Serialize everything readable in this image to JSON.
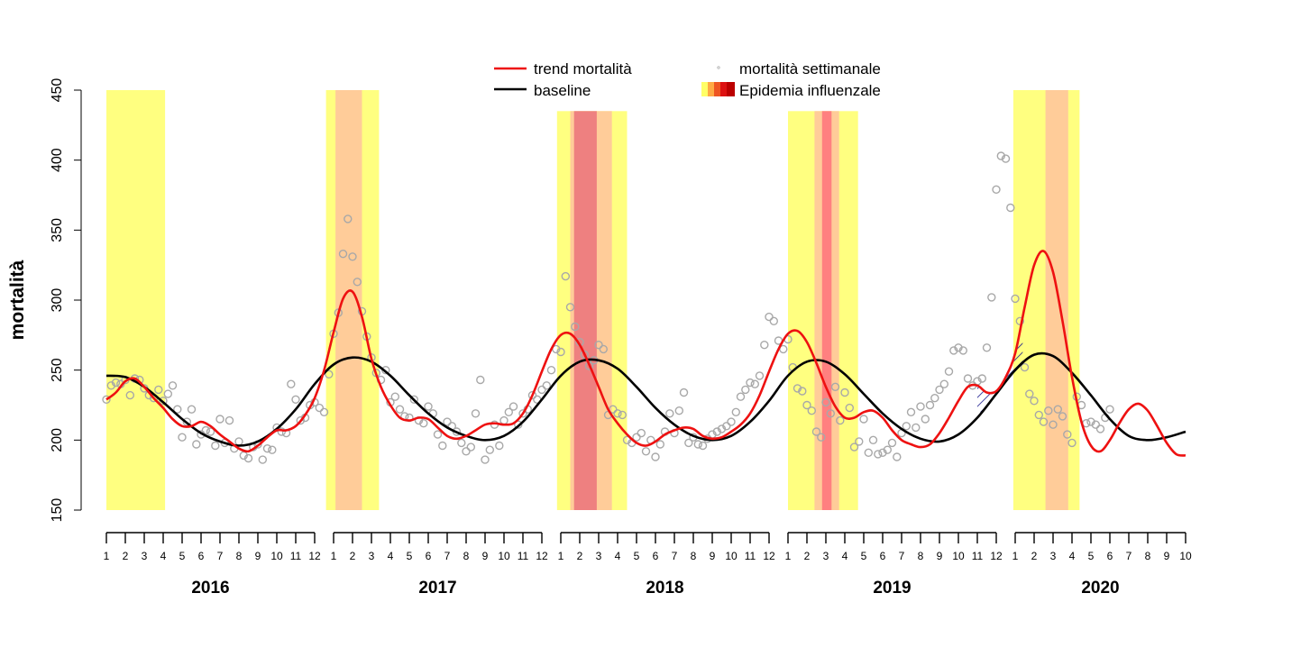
{
  "chart_data": {
    "type": "line",
    "ylabel": "mortalità",
    "ylim": [
      150,
      450
    ],
    "yticks": [
      "150",
      "200",
      "250",
      "300",
      "350",
      "400",
      "450"
    ],
    "month_tick_labels": [
      "1",
      "2",
      "3",
      "4",
      "5",
      "6",
      "7",
      "8",
      "9",
      "10",
      "11",
      "12"
    ],
    "years": [
      {
        "label": "2016",
        "months": 12
      },
      {
        "label": "2017",
        "months": 12
      },
      {
        "label": "2018",
        "months": 12
      },
      {
        "label": "2019",
        "months": 12
      },
      {
        "label": "2020",
        "months": 10
      }
    ],
    "legend": {
      "trend": "trend mortalità",
      "baseline": "baseline",
      "weekly": "mortalità settimanale",
      "epidemic": "Epidemia influenzale"
    },
    "colors": {
      "trend": "#ee1111",
      "baseline": "#000000",
      "points": "#a8a8a8",
      "epi_level1": "#ffff80",
      "epi_level2": "#ffcc99",
      "epi_level3": "#ee8080",
      "epi_level4": "#ff8080",
      "epi_level5": "#cc0000",
      "hatch": "#1a1a8c"
    },
    "epidemic_bands": [
      {
        "start": 0.0,
        "end": 3.1,
        "level": 1,
        "top": 450
      },
      {
        "start": 11.6,
        "end": 14.4,
        "level": 1,
        "top": 450
      },
      {
        "start": 12.1,
        "end": 13.5,
        "level": 2,
        "top": 450
      },
      {
        "start": 23.8,
        "end": 27.5,
        "level": 1,
        "top": 435
      },
      {
        "start": 24.5,
        "end": 26.7,
        "level": 2,
        "top": 435
      },
      {
        "start": 24.7,
        "end": 25.9,
        "level": 3,
        "top": 435
      },
      {
        "start": 36.0,
        "end": 39.7,
        "level": 1,
        "top": 435
      },
      {
        "start": 37.4,
        "end": 38.7,
        "level": 2,
        "top": 435
      },
      {
        "start": 37.8,
        "end": 38.3,
        "level": 4,
        "top": 435
      },
      {
        "start": 47.9,
        "end": 51.4,
        "level": 1,
        "top": 450
      },
      {
        "start": 49.6,
        "end": 50.8,
        "level": 2,
        "top": 450
      }
    ],
    "baseline_points": [
      [
        0,
        246
      ],
      [
        1,
        245
      ],
      [
        2,
        238
      ],
      [
        3,
        227
      ],
      [
        4,
        215
      ],
      [
        5,
        205
      ],
      [
        6,
        199
      ],
      [
        7,
        196
      ],
      [
        8,
        199
      ],
      [
        9,
        208
      ],
      [
        10,
        222
      ],
      [
        11,
        240
      ],
      [
        12,
        254
      ],
      [
        13,
        259
      ],
      [
        14,
        256
      ],
      [
        15,
        246
      ],
      [
        16,
        232
      ],
      [
        17,
        219
      ],
      [
        18,
        209
      ],
      [
        19,
        203
      ],
      [
        20,
        200
      ],
      [
        21,
        203
      ],
      [
        22,
        213
      ],
      [
        23,
        229
      ],
      [
        24,
        246
      ],
      [
        25,
        256
      ],
      [
        26,
        257
      ],
      [
        27,
        251
      ],
      [
        28,
        238
      ],
      [
        29,
        223
      ],
      [
        30,
        211
      ],
      [
        31,
        203
      ],
      [
        32,
        200
      ],
      [
        33,
        203
      ],
      [
        34,
        213
      ],
      [
        35,
        228
      ],
      [
        36,
        246
      ],
      [
        37,
        256
      ],
      [
        38,
        256
      ],
      [
        39,
        247
      ],
      [
        40,
        233
      ],
      [
        41,
        219
      ],
      [
        42,
        208
      ],
      [
        43,
        201
      ],
      [
        44,
        199
      ],
      [
        45,
        204
      ],
      [
        46,
        216
      ],
      [
        47,
        233
      ],
      [
        48,
        250
      ],
      [
        49,
        261
      ],
      [
        50,
        260
      ],
      [
        51,
        248
      ],
      [
        52,
        232
      ],
      [
        53,
        215
      ],
      [
        54,
        203
      ],
      [
        55,
        200
      ],
      [
        56,
        202
      ],
      [
        57,
        206
      ]
    ],
    "trend_points": [
      [
        0,
        229
      ],
      [
        0.5,
        234
      ],
      [
        1,
        242
      ],
      [
        1.5,
        244
      ],
      [
        2,
        238
      ],
      [
        2.5,
        230
      ],
      [
        3,
        223
      ],
      [
        3.5,
        215
      ],
      [
        4,
        210
      ],
      [
        4.5,
        210
      ],
      [
        5,
        213
      ],
      [
        5.5,
        210
      ],
      [
        6,
        204
      ],
      [
        6.5,
        199
      ],
      [
        7,
        194
      ],
      [
        7.5,
        192
      ],
      [
        8,
        196
      ],
      [
        8.5,
        202
      ],
      [
        9,
        207
      ],
      [
        9.5,
        207
      ],
      [
        10,
        210
      ],
      [
        10.5,
        218
      ],
      [
        11,
        230
      ],
      [
        11.5,
        250
      ],
      [
        12,
        277
      ],
      [
        12.5,
        301
      ],
      [
        13,
        306
      ],
      [
        13.5,
        288
      ],
      [
        14,
        258
      ],
      [
        14.5,
        238
      ],
      [
        15,
        225
      ],
      [
        15.5,
        216
      ],
      [
        16,
        214
      ],
      [
        16.5,
        216
      ],
      [
        17,
        215
      ],
      [
        17.5,
        209
      ],
      [
        18,
        203
      ],
      [
        18.5,
        201
      ],
      [
        19,
        203
      ],
      [
        19.5,
        207
      ],
      [
        20,
        211
      ],
      [
        20.5,
        212
      ],
      [
        21,
        211
      ],
      [
        21.5,
        212
      ],
      [
        22,
        219
      ],
      [
        22.5,
        232
      ],
      [
        23,
        249
      ],
      [
        23.5,
        265
      ],
      [
        24,
        275
      ],
      [
        24.5,
        276
      ],
      [
        25,
        268
      ],
      [
        25.5,
        254
      ],
      [
        26,
        238
      ],
      [
        26.5,
        222
      ],
      [
        27,
        212
      ],
      [
        27.5,
        204
      ],
      [
        28,
        198
      ],
      [
        28.5,
        196
      ],
      [
        29,
        199
      ],
      [
        29.5,
        204
      ],
      [
        30,
        207
      ],
      [
        30.5,
        209
      ],
      [
        31,
        208
      ],
      [
        31.5,
        203
      ],
      [
        32,
        201
      ],
      [
        32.5,
        202
      ],
      [
        33,
        206
      ],
      [
        33.5,
        211
      ],
      [
        34,
        219
      ],
      [
        34.5,
        232
      ],
      [
        35,
        249
      ],
      [
        35.5,
        265
      ],
      [
        36,
        276
      ],
      [
        36.5,
        278
      ],
      [
        37,
        270
      ],
      [
        37.5,
        255
      ],
      [
        38,
        238
      ],
      [
        38.5,
        224
      ],
      [
        39,
        216
      ],
      [
        39.5,
        216
      ],
      [
        40,
        220
      ],
      [
        40.5,
        221
      ],
      [
        41,
        216
      ],
      [
        41.5,
        207
      ],
      [
        42,
        200
      ],
      [
        42.5,
        197
      ],
      [
        43,
        195
      ],
      [
        43.5,
        197
      ],
      [
        44,
        205
      ],
      [
        44.5,
        216
      ],
      [
        45,
        228
      ],
      [
        45.5,
        238
      ],
      [
        46,
        239
      ],
      [
        46.5,
        234
      ],
      [
        47,
        235
      ],
      [
        47.5,
        245
      ],
      [
        48,
        262
      ],
      [
        48.5,
        295
      ],
      [
        49,
        325
      ],
      [
        49.5,
        335
      ],
      [
        50,
        320
      ],
      [
        50.5,
        285
      ],
      [
        51,
        245
      ],
      [
        51.5,
        213
      ],
      [
        52,
        196
      ],
      [
        52.5,
        192
      ],
      [
        53,
        200
      ],
      [
        53.5,
        212
      ],
      [
        54,
        222
      ],
      [
        54.5,
        226
      ],
      [
        55,
        221
      ],
      [
        55.5,
        210
      ],
      [
        56,
        198
      ],
      [
        56.5,
        190
      ],
      [
        57,
        189
      ]
    ],
    "weekly_points": [
      [
        0.0,
        229
      ],
      [
        0.25,
        239
      ],
      [
        0.5,
        241
      ],
      [
        0.75,
        240
      ],
      [
        1.0,
        243
      ],
      [
        1.25,
        232
      ],
      [
        1.5,
        244
      ],
      [
        1.75,
        243
      ],
      [
        2.0,
        237
      ],
      [
        2.25,
        232
      ],
      [
        2.5,
        230
      ],
      [
        2.75,
        236
      ],
      [
        3.0,
        228
      ],
      [
        3.25,
        233
      ],
      [
        3.5,
        239
      ],
      [
        3.75,
        222
      ],
      [
        4.0,
        202
      ],
      [
        4.25,
        213
      ],
      [
        4.5,
        222
      ],
      [
        4.75,
        197
      ],
      [
        5.0,
        204
      ],
      [
        5.25,
        207
      ],
      [
        5.5,
        206
      ],
      [
        5.75,
        196
      ],
      [
        6.0,
        215
      ],
      [
        6.25,
        198
      ],
      [
        6.5,
        214
      ],
      [
        6.75,
        194
      ],
      [
        7.0,
        199
      ],
      [
        7.25,
        189
      ],
      [
        7.5,
        187
      ],
      [
        7.75,
        195
      ],
      [
        8.0,
        197
      ],
      [
        8.25,
        186
      ],
      [
        8.5,
        194
      ],
      [
        8.75,
        193
      ],
      [
        9.0,
        209
      ],
      [
        9.25,
        206
      ],
      [
        9.5,
        205
      ],
      [
        9.75,
        240
      ],
      [
        10.0,
        229
      ],
      [
        10.25,
        214
      ],
      [
        10.5,
        216
      ],
      [
        10.75,
        225
      ],
      [
        11.0,
        227
      ],
      [
        11.25,
        223
      ],
      [
        11.5,
        220
      ],
      [
        11.75,
        247
      ],
      [
        12.0,
        276
      ],
      [
        12.25,
        291
      ],
      [
        12.5,
        333
      ],
      [
        12.75,
        358
      ],
      [
        13.0,
        331
      ],
      [
        13.25,
        313
      ],
      [
        13.5,
        292
      ],
      [
        13.75,
        274
      ],
      [
        14.0,
        259
      ],
      [
        14.25,
        248
      ],
      [
        14.5,
        243
      ],
      [
        14.75,
        250
      ],
      [
        15.0,
        227
      ],
      [
        15.25,
        231
      ],
      [
        15.5,
        222
      ],
      [
        15.75,
        217
      ],
      [
        16.0,
        216
      ],
      [
        16.25,
        229
      ],
      [
        16.5,
        214
      ],
      [
        16.75,
        212
      ],
      [
        17.0,
        224
      ],
      [
        17.25,
        219
      ],
      [
        17.5,
        204
      ],
      [
        17.75,
        196
      ],
      [
        18.0,
        213
      ],
      [
        18.25,
        210
      ],
      [
        18.5,
        206
      ],
      [
        18.75,
        198
      ],
      [
        19.0,
        192
      ],
      [
        19.25,
        195
      ],
      [
        19.5,
        219
      ],
      [
        19.75,
        243
      ],
      [
        20.0,
        186
      ],
      [
        20.25,
        193
      ],
      [
        20.5,
        211
      ],
      [
        20.75,
        196
      ],
      [
        21.0,
        214
      ],
      [
        21.25,
        220
      ],
      [
        21.5,
        224
      ],
      [
        21.75,
        211
      ],
      [
        22.0,
        219
      ],
      [
        22.25,
        222
      ],
      [
        22.5,
        232
      ],
      [
        22.75,
        229
      ],
      [
        23.0,
        236
      ],
      [
        23.25,
        239
      ],
      [
        23.5,
        250
      ],
      [
        23.75,
        265
      ],
      [
        24.0,
        263
      ],
      [
        24.25,
        317
      ],
      [
        24.5,
        295
      ],
      [
        24.75,
        281
      ],
      [
        25.0,
        270
      ],
      [
        25.25,
        261
      ],
      [
        25.5,
        253
      ],
      [
        25.75,
        257
      ],
      [
        26.0,
        268
      ],
      [
        26.25,
        265
      ],
      [
        26.5,
        218
      ],
      [
        26.75,
        222
      ],
      [
        27.0,
        219
      ],
      [
        27.25,
        218
      ],
      [
        27.5,
        200
      ],
      [
        27.75,
        198
      ],
      [
        28.0,
        202
      ],
      [
        28.25,
        205
      ],
      [
        28.5,
        192
      ],
      [
        28.75,
        200
      ],
      [
        29.0,
        188
      ],
      [
        29.25,
        197
      ],
      [
        29.5,
        206
      ],
      [
        29.75,
        219
      ],
      [
        30.0,
        205
      ],
      [
        30.25,
        221
      ],
      [
        30.5,
        234
      ],
      [
        30.75,
        198
      ],
      [
        31.0,
        202
      ],
      [
        31.25,
        197
      ],
      [
        31.5,
        196
      ],
      [
        31.75,
        201
      ],
      [
        32.0,
        204
      ],
      [
        32.25,
        206
      ],
      [
        32.5,
        208
      ],
      [
        32.75,
        210
      ],
      [
        33.0,
        213
      ],
      [
        33.25,
        220
      ],
      [
        33.5,
        231
      ],
      [
        33.75,
        236
      ],
      [
        34.0,
        241
      ],
      [
        34.25,
        240
      ],
      [
        34.5,
        246
      ],
      [
        34.75,
        268
      ],
      [
        35.0,
        288
      ],
      [
        35.25,
        285
      ],
      [
        35.5,
        271
      ],
      [
        35.75,
        265
      ],
      [
        36.0,
        272
      ],
      [
        36.25,
        252
      ],
      [
        36.5,
        237
      ],
      [
        36.75,
        235
      ],
      [
        37.0,
        225
      ],
      [
        37.25,
        221
      ],
      [
        37.5,
        206
      ],
      [
        37.75,
        202
      ],
      [
        38.0,
        227
      ],
      [
        38.25,
        219
      ],
      [
        38.5,
        238
      ],
      [
        38.75,
        214
      ],
      [
        39.0,
        234
      ],
      [
        39.25,
        223
      ],
      [
        39.5,
        195
      ],
      [
        39.75,
        199
      ],
      [
        40.0,
        215
      ],
      [
        40.25,
        191
      ],
      [
        40.5,
        200
      ],
      [
        40.75,
        190
      ],
      [
        41.0,
        191
      ],
      [
        41.25,
        193
      ],
      [
        41.5,
        198
      ],
      [
        41.75,
        188
      ],
      [
        42.0,
        205
      ],
      [
        42.25,
        210
      ],
      [
        42.5,
        220
      ],
      [
        42.75,
        209
      ],
      [
        43.0,
        224
      ],
      [
        43.25,
        215
      ],
      [
        43.5,
        225
      ],
      [
        43.75,
        230
      ],
      [
        44.0,
        236
      ],
      [
        44.25,
        240
      ],
      [
        44.5,
        249
      ],
      [
        44.75,
        264
      ],
      [
        45.0,
        266
      ],
      [
        45.25,
        264
      ],
      [
        45.5,
        244
      ],
      [
        45.75,
        239
      ],
      [
        46.0,
        242
      ],
      [
        46.25,
        244
      ],
      [
        46.5,
        266
      ],
      [
        46.75,
        302
      ],
      [
        47.0,
        379
      ],
      [
        47.25,
        403
      ],
      [
        47.5,
        401
      ],
      [
        47.75,
        366
      ],
      [
        48.0,
        301
      ],
      [
        48.25,
        285
      ],
      [
        48.5,
        252
      ],
      [
        48.75,
        233
      ],
      [
        49.0,
        228
      ],
      [
        49.25,
        218
      ],
      [
        49.5,
        213
      ],
      [
        49.75,
        221
      ],
      [
        50.0,
        211
      ],
      [
        50.25,
        222
      ],
      [
        50.5,
        217
      ],
      [
        50.75,
        204
      ],
      [
        51.0,
        198
      ],
      [
        51.25,
        231
      ],
      [
        51.5,
        225
      ],
      [
        51.75,
        212
      ],
      [
        52.0,
        213
      ],
      [
        52.25,
        211
      ],
      [
        52.5,
        208
      ],
      [
        52.75,
        216
      ],
      [
        53.0,
        222
      ]
    ],
    "hatch_region": {
      "start": 46.0,
      "end": 48.4
    }
  }
}
